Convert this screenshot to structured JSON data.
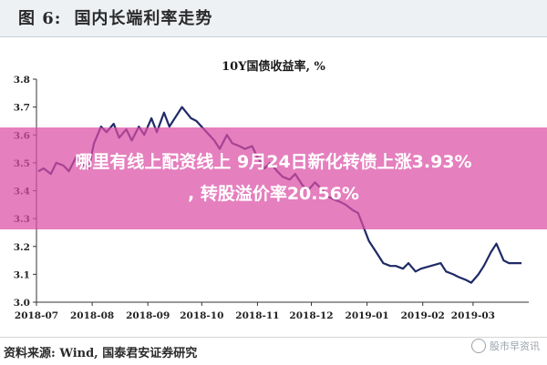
{
  "figure_header": {
    "label": "图 6:",
    "title": "国内长端利率走势"
  },
  "chart_data": {
    "type": "line",
    "title": "10Y国债收益率, %",
    "xlabel": "",
    "ylabel": "",
    "ylim": [
      3.0,
      3.8
    ],
    "yticks": [
      "3.8",
      "3.7",
      "3.6",
      "3.5",
      "3.4",
      "3.3",
      "3.2",
      "3.1",
      "3.0"
    ],
    "xticks": [
      "2018-07",
      "2018-08",
      "2018-09",
      "2018-10",
      "2018-11",
      "2018-12",
      "2019-01",
      "2019-02",
      "2019-03"
    ],
    "grid": false,
    "series": [
      {
        "color": "#1f2a66",
        "x": [
          "2018-07-02",
          "2018-07-05",
          "2018-07-09",
          "2018-07-12",
          "2018-07-16",
          "2018-07-19",
          "2018-07-23",
          "2018-07-26",
          "2018-07-30",
          "2018-08-02",
          "2018-08-06",
          "2018-08-09",
          "2018-08-13",
          "2018-08-16",
          "2018-08-20",
          "2018-08-23",
          "2018-08-27",
          "2018-08-30",
          "2018-09-03",
          "2018-09-06",
          "2018-09-10",
          "2018-09-13",
          "2018-09-17",
          "2018-09-20",
          "2018-09-25",
          "2018-09-28",
          "2018-10-08",
          "2018-10-11",
          "2018-10-15",
          "2018-10-18",
          "2018-10-22",
          "2018-10-25",
          "2018-10-29",
          "2018-11-01",
          "2018-11-05",
          "2018-11-08",
          "2018-11-12",
          "2018-11-15",
          "2018-11-19",
          "2018-11-22",
          "2018-11-26",
          "2018-11-29",
          "2018-12-03",
          "2018-12-06",
          "2018-12-10",
          "2018-12-13",
          "2018-12-17",
          "2018-12-20",
          "2018-12-24",
          "2018-12-27",
          "2019-01-02",
          "2019-01-07",
          "2019-01-10",
          "2019-01-14",
          "2019-01-17",
          "2019-01-21",
          "2019-01-24",
          "2019-01-28",
          "2019-01-31",
          "2019-02-11",
          "2019-02-14",
          "2019-02-18",
          "2019-02-21",
          "2019-02-25",
          "2019-02-28",
          "2019-03-04",
          "2019-03-07",
          "2019-03-11",
          "2019-03-14",
          "2019-03-18",
          "2019-03-21",
          "2019-03-25",
          "2019-03-28"
        ],
        "values": [
          3.47,
          3.48,
          3.46,
          3.5,
          3.49,
          3.47,
          3.52,
          3.5,
          3.48,
          3.57,
          3.63,
          3.61,
          3.64,
          3.59,
          3.62,
          3.58,
          3.63,
          3.6,
          3.66,
          3.61,
          3.68,
          3.63,
          3.67,
          3.7,
          3.66,
          3.65,
          3.58,
          3.55,
          3.6,
          3.57,
          3.56,
          3.55,
          3.56,
          3.52,
          3.48,
          3.5,
          3.47,
          3.45,
          3.44,
          3.46,
          3.42,
          3.4,
          3.43,
          3.41,
          3.38,
          3.37,
          3.36,
          3.35,
          3.33,
          3.32,
          3.22,
          3.17,
          3.14,
          3.13,
          3.13,
          3.12,
          3.14,
          3.11,
          3.12,
          3.14,
          3.11,
          3.1,
          3.09,
          3.08,
          3.07,
          3.1,
          3.13,
          3.18,
          3.21,
          3.15,
          3.14,
          3.14,
          3.14
        ]
      }
    ]
  },
  "overlay": {
    "line1": "哪里有线上配资线上 9月24日新化转债上涨3.93%",
    "line2": ", 转股溢价率20.56%"
  },
  "source": "资料来源: Wind, 国泰君安证券研究",
  "watermark": "股市早资讯"
}
